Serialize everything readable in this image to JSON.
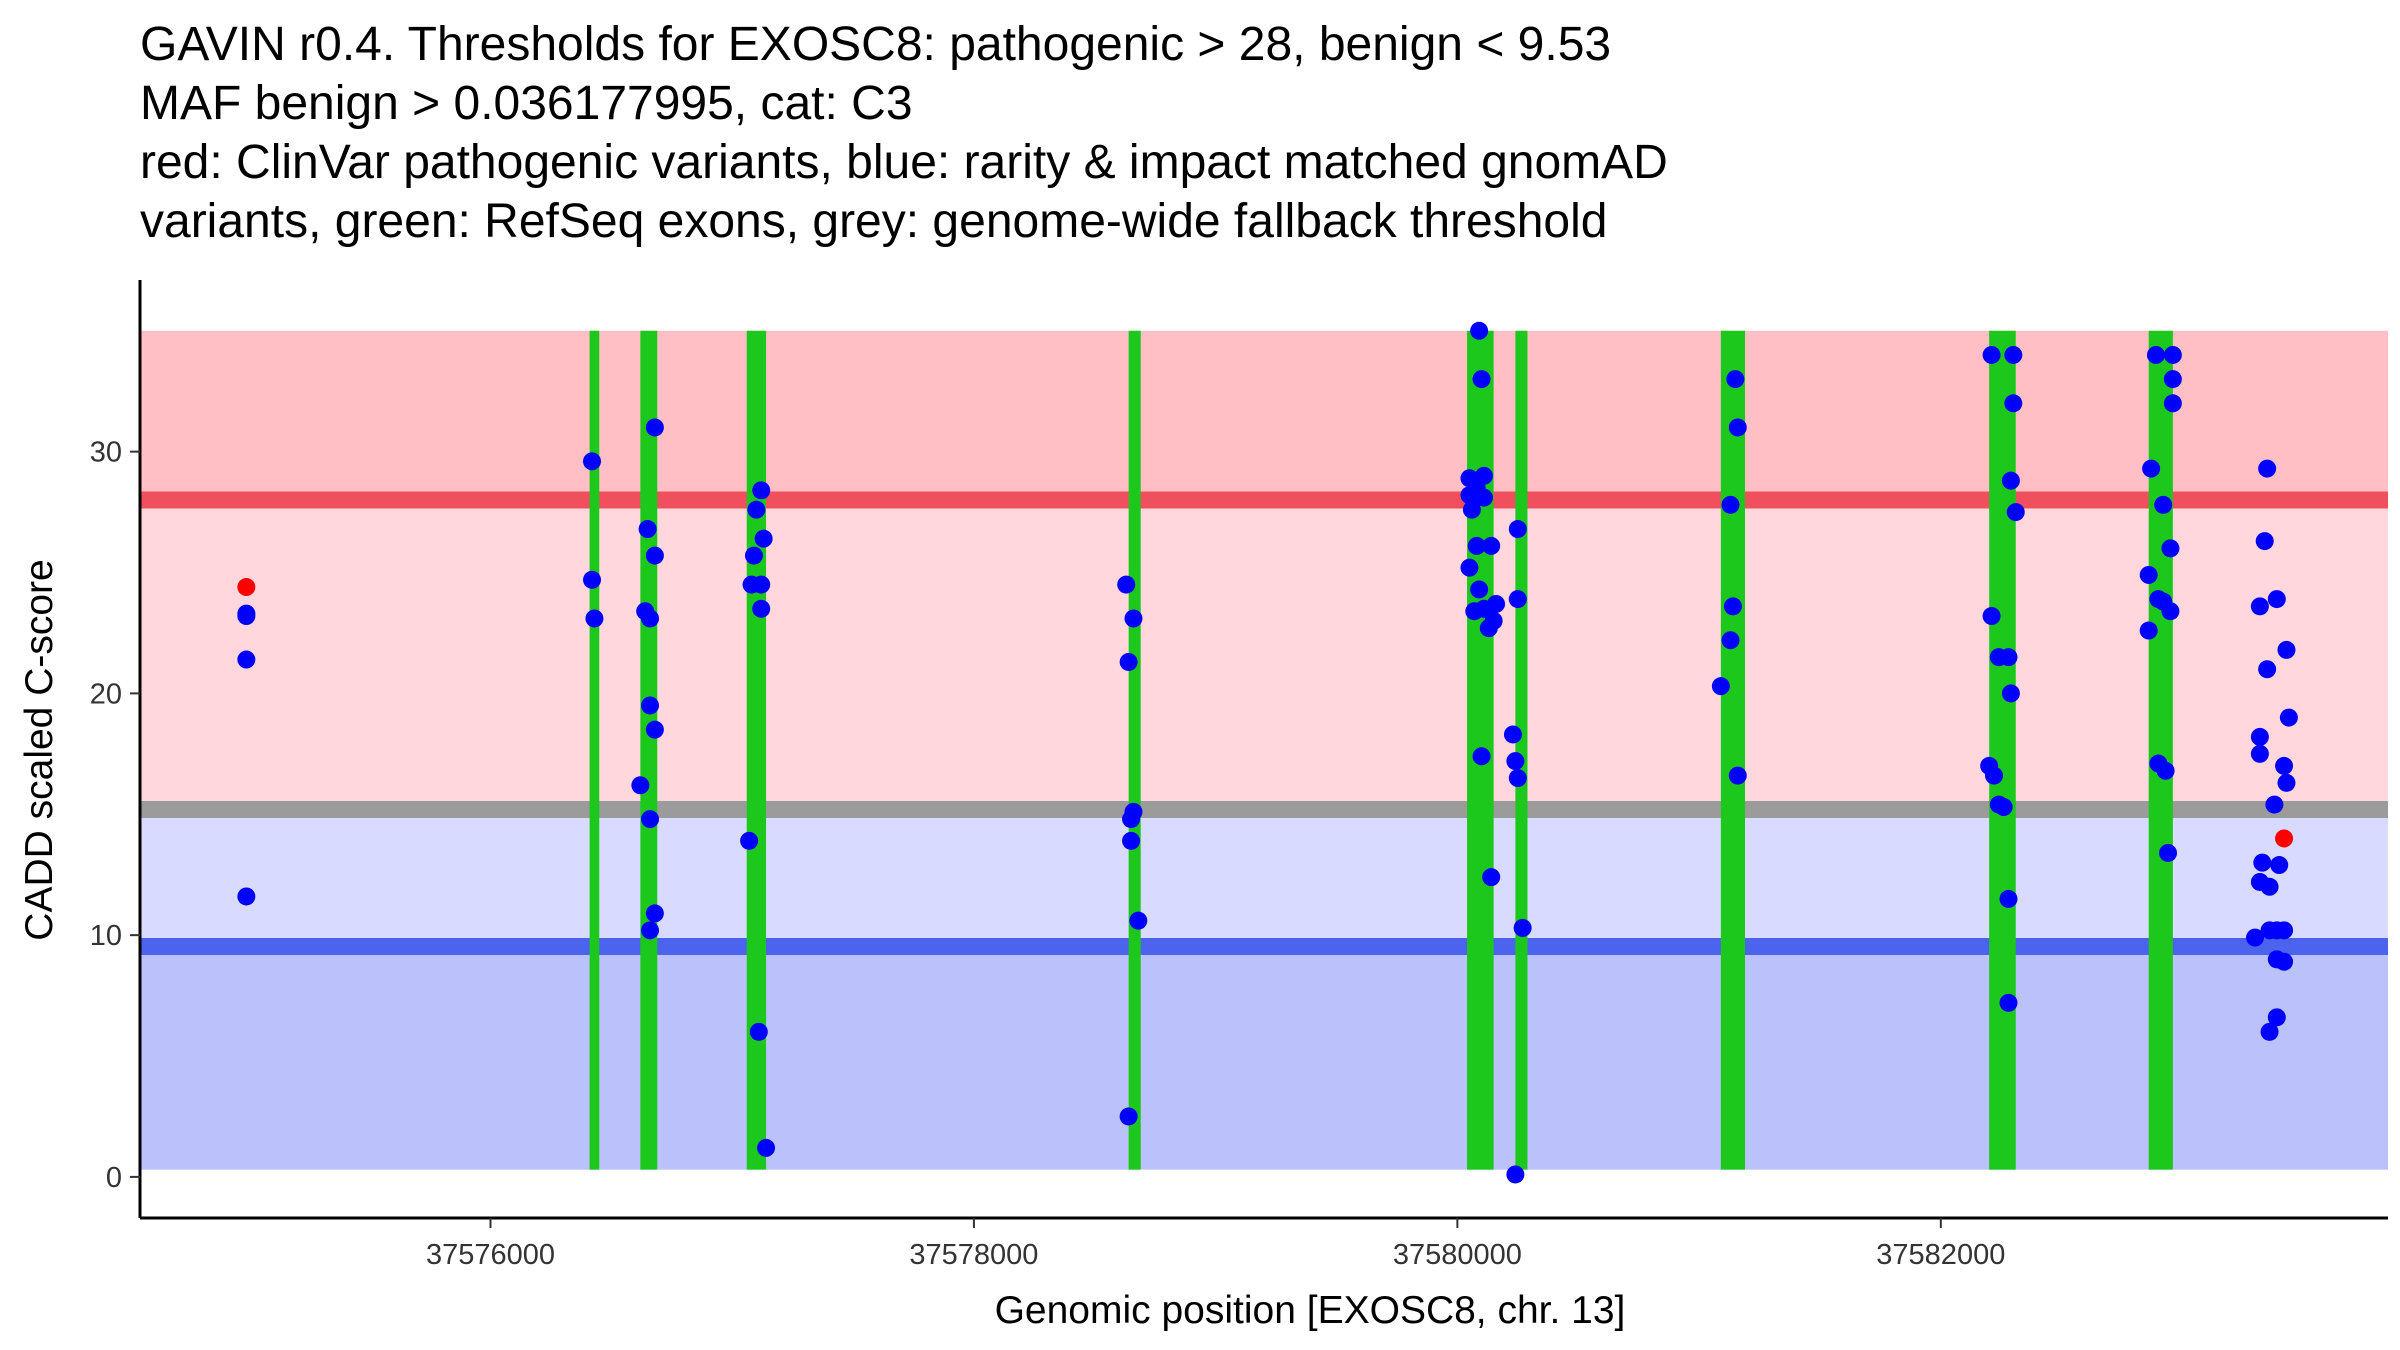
{
  "chart_data": {
    "type": "scatter",
    "title_lines": [
      "GAVIN r0.4. Thresholds for EXOSC8: pathogenic > 28, benign < 9.53",
      "MAF benign > 0.036177995, cat: C3",
      "red: ClinVar pathogenic variants, blue: rarity & impact matched gnomAD",
      "variants, green: RefSeq exons, grey: genome-wide fallback threshold"
    ],
    "xlabel": "Genomic position [EXOSC8, chr. 13]",
    "ylabel": "CADD scaled C-score",
    "xlim": [
      37574550,
      37583850
    ],
    "ylim": [
      -1.7,
      37.1
    ],
    "x_ticks": [
      37576000,
      37578000,
      37580000,
      37582000
    ],
    "y_ticks": [
      0,
      10,
      20,
      30
    ],
    "grid": false,
    "colors": {
      "pathogenic_band": "#ffbfc5",
      "mid_band": "#ffd7dc",
      "benign_mid_band": "#d8dbff",
      "benign_band": "#bbc1fb",
      "pathogenic_line": "#f0505e",
      "benign_line": "#4c63ee",
      "fallback_line": "#9b9b9b",
      "exon": "#1dc81d",
      "clinvar_point": "#ff0000",
      "gnomad_point": "#0000ff"
    },
    "bands": [
      {
        "name": "pathogenic-band",
        "from": 28,
        "to": 35,
        "color_key": "pathogenic_band"
      },
      {
        "name": "uncertain-band",
        "from": 15.2,
        "to": 28,
        "color_key": "mid_band"
      },
      {
        "name": "benign-upper-band",
        "from": 9.53,
        "to": 15.2,
        "color_key": "benign_mid_band"
      },
      {
        "name": "benign-band",
        "from": 0.3,
        "to": 9.53,
        "color_key": "benign_band"
      }
    ],
    "threshold_lines": [
      {
        "name": "pathogenic-threshold-line",
        "y": 28,
        "color_key": "pathogenic_line"
      },
      {
        "name": "fallback-threshold-line",
        "y": 15.2,
        "color_key": "fallback_line"
      },
      {
        "name": "benign-threshold-line",
        "y": 9.53,
        "color_key": "benign_line"
      }
    ],
    "exons": [
      [
        37576410,
        37576450
      ],
      [
        37576620,
        37576690
      ],
      [
        37577060,
        37577140
      ],
      [
        37578640,
        37578690
      ],
      [
        37580040,
        37580150
      ],
      [
        37580240,
        37580290
      ],
      [
        37581090,
        37581190
      ],
      [
        37582200,
        37582310
      ],
      [
        37582860,
        37582960
      ]
    ],
    "series": [
      {
        "name": "ClinVar pathogenic variants",
        "color_key": "clinvar_point",
        "points": [
          [
            37574990,
            24.4
          ],
          [
            37583420,
            14.0
          ]
        ]
      },
      {
        "name": "rarity & impact matched gnomAD variants",
        "color_key": "gnomad_point",
        "points": [
          [
            37574990,
            23.3
          ],
          [
            37574990,
            23.2
          ],
          [
            37574990,
            21.4
          ],
          [
            37574990,
            11.6
          ],
          [
            37576420,
            29.6
          ],
          [
            37576420,
            24.7
          ],
          [
            37576430,
            23.1
          ],
          [
            37576640,
            23.4
          ],
          [
            37576660,
            23.1
          ],
          [
            37576650,
            26.8
          ],
          [
            37576680,
            31.0
          ],
          [
            37576680,
            25.7
          ],
          [
            37576660,
            19.5
          ],
          [
            37576680,
            18.5
          ],
          [
            37576620,
            16.2
          ],
          [
            37576660,
            14.8
          ],
          [
            37576680,
            10.9
          ],
          [
            37576660,
            10.2
          ],
          [
            37577080,
            24.5
          ],
          [
            37577090,
            25.7
          ],
          [
            37577100,
            27.6
          ],
          [
            37577120,
            28.4
          ],
          [
            37577130,
            26.4
          ],
          [
            37577120,
            24.5
          ],
          [
            37577120,
            23.5
          ],
          [
            37577070,
            13.9
          ],
          [
            37577110,
            6.0
          ],
          [
            37577140,
            1.2
          ],
          [
            37578630,
            24.5
          ],
          [
            37578640,
            21.3
          ],
          [
            37578660,
            23.1
          ],
          [
            37578650,
            14.8
          ],
          [
            37578660,
            15.1
          ],
          [
            37578650,
            13.9
          ],
          [
            37578680,
            10.6
          ],
          [
            37578640,
            2.5
          ],
          [
            37580050,
            28.9
          ],
          [
            37580050,
            28.2
          ],
          [
            37580060,
            27.6
          ],
          [
            37580080,
            28.5
          ],
          [
            37580090,
            35.0
          ],
          [
            37580110,
            29.0
          ],
          [
            37580110,
            28.1
          ],
          [
            37580100,
            33.0
          ],
          [
            37580050,
            25.2
          ],
          [
            37580080,
            26.1
          ],
          [
            37580140,
            26.1
          ],
          [
            37580090,
            24.3
          ],
          [
            37580110,
            23.5
          ],
          [
            37580160,
            23.7
          ],
          [
            37580070,
            23.4
          ],
          [
            37580150,
            23.0
          ],
          [
            37580130,
            22.7
          ],
          [
            37580100,
            17.4
          ],
          [
            37580140,
            12.4
          ],
          [
            37580250,
            26.8
          ],
          [
            37580250,
            23.9
          ],
          [
            37580230,
            18.3
          ],
          [
            37580240,
            17.2
          ],
          [
            37580250,
            16.5
          ],
          [
            37580270,
            10.3
          ],
          [
            37580240,
            0.1
          ],
          [
            37581090,
            20.3
          ],
          [
            37581130,
            27.8
          ],
          [
            37581150,
            33.0
          ],
          [
            37581160,
            31.0
          ],
          [
            37581140,
            23.6
          ],
          [
            37581130,
            22.2
          ],
          [
            37581160,
            16.6
          ],
          [
            37582210,
            34.0
          ],
          [
            37582300,
            34.0
          ],
          [
            37582300,
            32.0
          ],
          [
            37582290,
            28.8
          ],
          [
            37582310,
            27.5
          ],
          [
            37582210,
            23.2
          ],
          [
            37582240,
            21.5
          ],
          [
            37582280,
            21.5
          ],
          [
            37582290,
            20.0
          ],
          [
            37582200,
            17.0
          ],
          [
            37582220,
            16.6
          ],
          [
            37582240,
            15.4
          ],
          [
            37582260,
            15.3
          ],
          [
            37582280,
            11.5
          ],
          [
            37582280,
            7.2
          ],
          [
            37582890,
            34.0
          ],
          [
            37582960,
            34.0
          ],
          [
            37582960,
            33.0
          ],
          [
            37582960,
            32.0
          ],
          [
            37582870,
            29.3
          ],
          [
            37582920,
            27.8
          ],
          [
            37582950,
            26.0
          ],
          [
            37582860,
            24.9
          ],
          [
            37582900,
            23.9
          ],
          [
            37582920,
            23.8
          ],
          [
            37582950,
            23.4
          ],
          [
            37582860,
            22.6
          ],
          [
            37582900,
            17.1
          ],
          [
            37582930,
            16.8
          ],
          [
            37582940,
            13.4
          ],
          [
            37583350,
            29.3
          ],
          [
            37583340,
            26.3
          ],
          [
            37583390,
            23.9
          ],
          [
            37583320,
            23.6
          ],
          [
            37583350,
            21.0
          ],
          [
            37583430,
            21.8
          ],
          [
            37583440,
            19.0
          ],
          [
            37583320,
            18.2
          ],
          [
            37583320,
            17.5
          ],
          [
            37583420,
            17.0
          ],
          [
            37583430,
            16.3
          ],
          [
            37583380,
            15.4
          ],
          [
            37583330,
            13.0
          ],
          [
            37583400,
            12.9
          ],
          [
            37583320,
            12.2
          ],
          [
            37583360,
            12.0
          ],
          [
            37583300,
            9.9
          ],
          [
            37583360,
            10.2
          ],
          [
            37583390,
            10.2
          ],
          [
            37583420,
            10.2
          ],
          [
            37583390,
            9.0
          ],
          [
            37583420,
            8.9
          ],
          [
            37583390,
            6.6
          ],
          [
            37583360,
            6.0
          ]
        ]
      }
    ]
  }
}
